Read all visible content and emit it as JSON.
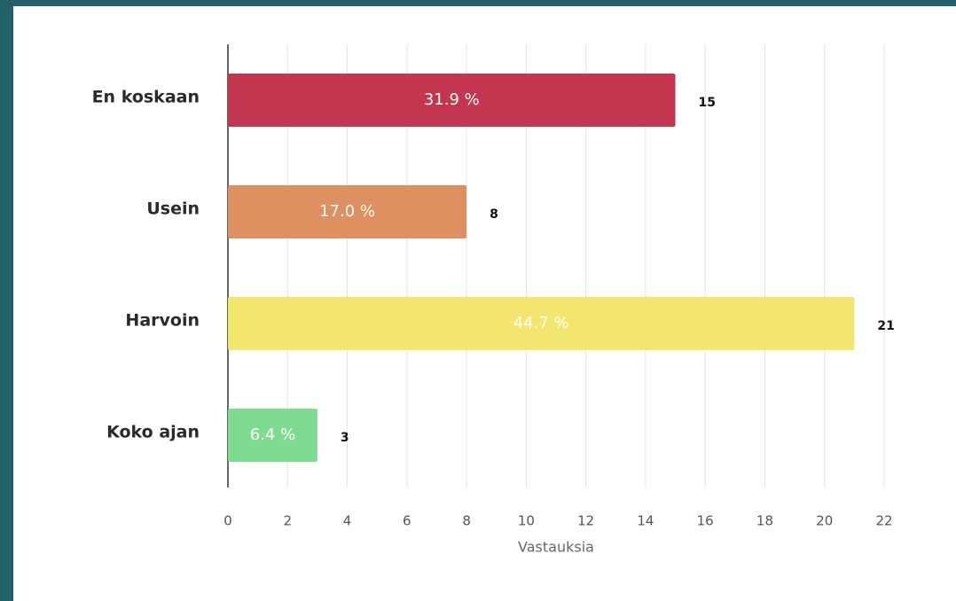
{
  "chart_data": {
    "type": "barh",
    "categories": [
      "En koskaan",
      "Usein",
      "Harvoin",
      "Koko ajan"
    ],
    "values": [
      15,
      8,
      21,
      3
    ],
    "bar_labels": [
      "31.9 %",
      "17.0 %",
      "44.7 %",
      "6.4 %"
    ],
    "colors": [
      "#c4354f",
      "#de9060",
      "#f2e66e",
      "#7ddc90"
    ],
    "xlabel": "Vastauksia",
    "xlim": [
      0,
      22
    ],
    "xticks": [
      0,
      2,
      4,
      6,
      8,
      10,
      12,
      14,
      16,
      18,
      20,
      22
    ],
    "grid": true
  }
}
